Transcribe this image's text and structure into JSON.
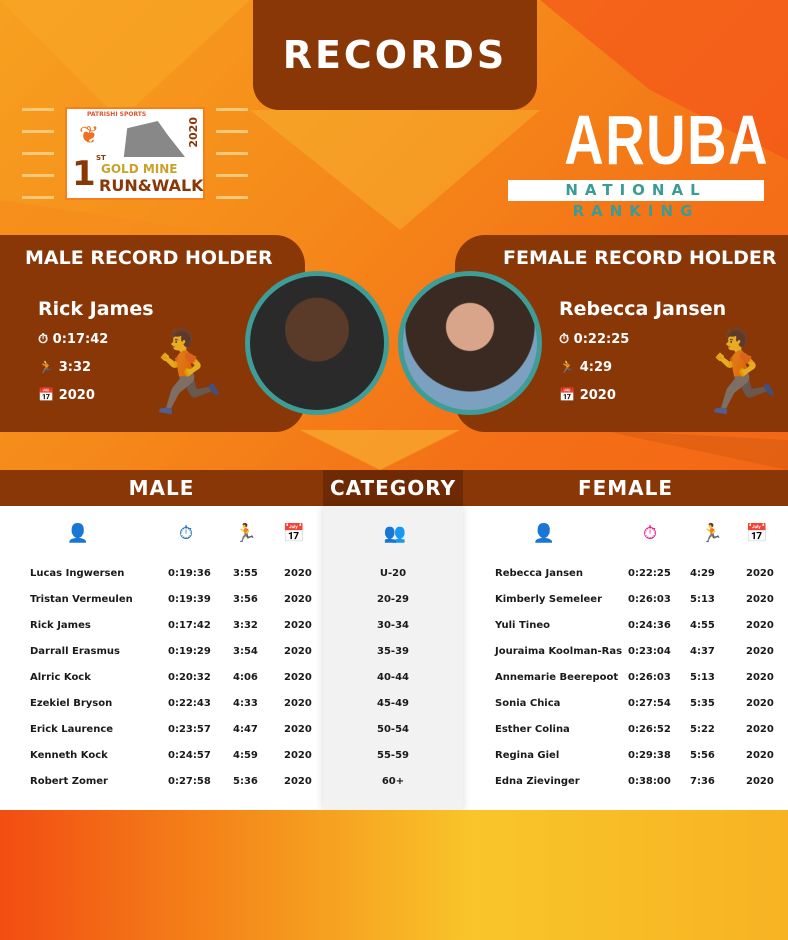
{
  "header": {
    "title": "RECORDS"
  },
  "logo": {
    "sponsor": "PATRISHI SPORTS",
    "edition": "1ST",
    "event": "GOLD MINE",
    "sub": "RUN&WALK",
    "year": "2020"
  },
  "branding": {
    "country": "ARUBA",
    "subtitle": "NATIONAL RANKING"
  },
  "colors": {
    "brown": "#8a3708",
    "teal": "#3e9d97",
    "male_icon": "#1f6fb4",
    "female_icon": "#e4158c"
  },
  "male_holder": {
    "title": "MALE RECORD HOLDER",
    "name": "Rick James",
    "time": "0:17:42",
    "pace": "3:32",
    "year": "2020"
  },
  "female_holder": {
    "title": "FEMALE RECORD HOLDER",
    "name": "Rebecca Jansen",
    "time": "0:22:25",
    "pace": "4:29",
    "year": "2020"
  },
  "table": {
    "male_header": "MALE",
    "category_header": "CATEGORY",
    "female_header": "FEMALE",
    "icons": [
      "person-icon",
      "stopwatch-icon",
      "runner-icon",
      "calendar-icon"
    ],
    "categories": [
      "U-20",
      "20-29",
      "30-34",
      "35-39",
      "40-44",
      "45-49",
      "50-54",
      "55-59",
      "60+"
    ],
    "male": [
      [
        "Lucas Ingwersen",
        "0:19:36",
        "3:55",
        "2020"
      ],
      [
        "Tristan Vermeulen",
        "0:19:39",
        "3:56",
        "2020"
      ],
      [
        "Rick James",
        "0:17:42",
        "3:32",
        "2020"
      ],
      [
        "Darrall Erasmus",
        "0:19:29",
        "3:54",
        "2020"
      ],
      [
        "Alrric Kock",
        "0:20:32",
        "4:06",
        "2020"
      ],
      [
        "Ezekiel Bryson",
        "0:22:43",
        "4:33",
        "2020"
      ],
      [
        "Erick Laurence",
        "0:23:57",
        "4:47",
        "2020"
      ],
      [
        "Kenneth Kock",
        "0:24:57",
        "4:59",
        "2020"
      ],
      [
        "Robert Zomer",
        "0:27:58",
        "5:36",
        "2020"
      ]
    ],
    "female": [
      [
        "Rebecca Jansen",
        "0:22:25",
        "4:29",
        "2020"
      ],
      [
        "Kimberly Semeleer",
        "0:26:03",
        "5:13",
        "2020"
      ],
      [
        "Yuli Tineo",
        "0:24:36",
        "4:55",
        "2020"
      ],
      [
        "Jouraima Koolman-Ras",
        "0:23:04",
        "4:37",
        "2020"
      ],
      [
        "Annemarie Beerepoot",
        "0:26:03",
        "5:13",
        "2020"
      ],
      [
        "Sonia Chica",
        "0:27:54",
        "5:35",
        "2020"
      ],
      [
        "Esther Colina",
        "0:26:52",
        "5:22",
        "2020"
      ],
      [
        "Regina Giel",
        "0:29:38",
        "5:56",
        "2020"
      ],
      [
        "Edna Zievinger",
        "0:38:00",
        "7:36",
        "2020"
      ]
    ]
  }
}
